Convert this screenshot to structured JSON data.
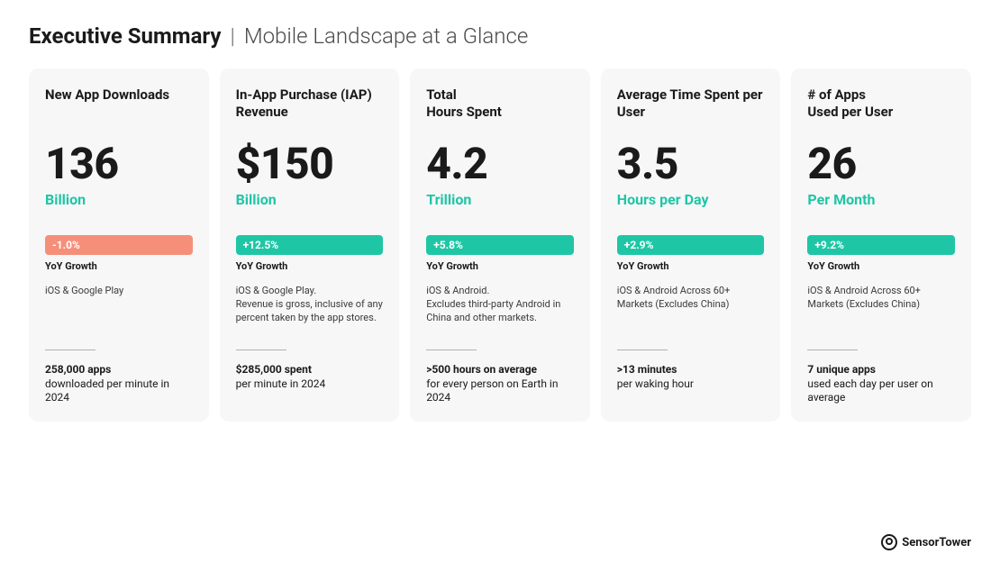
{
  "header": {
    "bold": "Executive Summary",
    "divider": "|",
    "sub": "Mobile Landscape at a Glance"
  },
  "colors": {
    "card_bg": "#f7f7f7",
    "accent_teal": "#1fc6a6",
    "accent_coral": "#f68f7a",
    "text_primary": "#1a1a1a",
    "text_secondary": "#3a3a3a"
  },
  "cards": [
    {
      "title": "New App Downloads",
      "value": "136",
      "unit": "Billion",
      "unit_color": "#1fc6a6",
      "growth": "-1.0%",
      "growth_bg": "#f68f7a",
      "growth_label": "YoY Growth",
      "note": "iOS & Google Play",
      "stat_strong": "258,000 apps",
      "stat_rest": "downloaded per minute in 2024"
    },
    {
      "title": "In-App Purchase (IAP) Revenue",
      "value": "$150",
      "unit": "Billion",
      "unit_color": "#1fc6a6",
      "growth": "+12.5%",
      "growth_bg": "#1fc6a6",
      "growth_label": "YoY Growth",
      "note": "iOS & Google Play.\nRevenue is gross, inclusive of any percent taken by the app stores.",
      "stat_strong": "$285,000 spent",
      "stat_rest": "per minute in 2024"
    },
    {
      "title": "Total\nHours Spent",
      "value": "4.2",
      "unit": "Trillion",
      "unit_color": "#1fc6a6",
      "growth": "+5.8%",
      "growth_bg": "#1fc6a6",
      "growth_label": "YoY Growth",
      "note": "iOS & Android.\nExcludes third-party Android in China and other markets.",
      "stat_strong": ">500 hours on average",
      "stat_rest": "for every person on Earth in 2024"
    },
    {
      "title": "Average Time Spent per User",
      "value": "3.5",
      "unit": "Hours per Day",
      "unit_color": "#1fc6a6",
      "growth": "+2.9%",
      "growth_bg": "#1fc6a6",
      "growth_label": "YoY Growth",
      "note": "iOS & Android Across 60+ Markets (Excludes China)",
      "stat_strong": ">13 minutes",
      "stat_rest": "per waking hour"
    },
    {
      "title": "# of Apps\nUsed per User",
      "value": "26",
      "unit": "Per Month",
      "unit_color": "#1fc6a6",
      "growth": "+9.2%",
      "growth_bg": "#1fc6a6",
      "growth_label": "YoY Growth",
      "note": "iOS & Android Across 60+ Markets (Excludes China)",
      "stat_strong": "7 unique apps",
      "stat_rest": "used each day per user on average"
    }
  ],
  "footer": {
    "brand": "SensorTower"
  }
}
